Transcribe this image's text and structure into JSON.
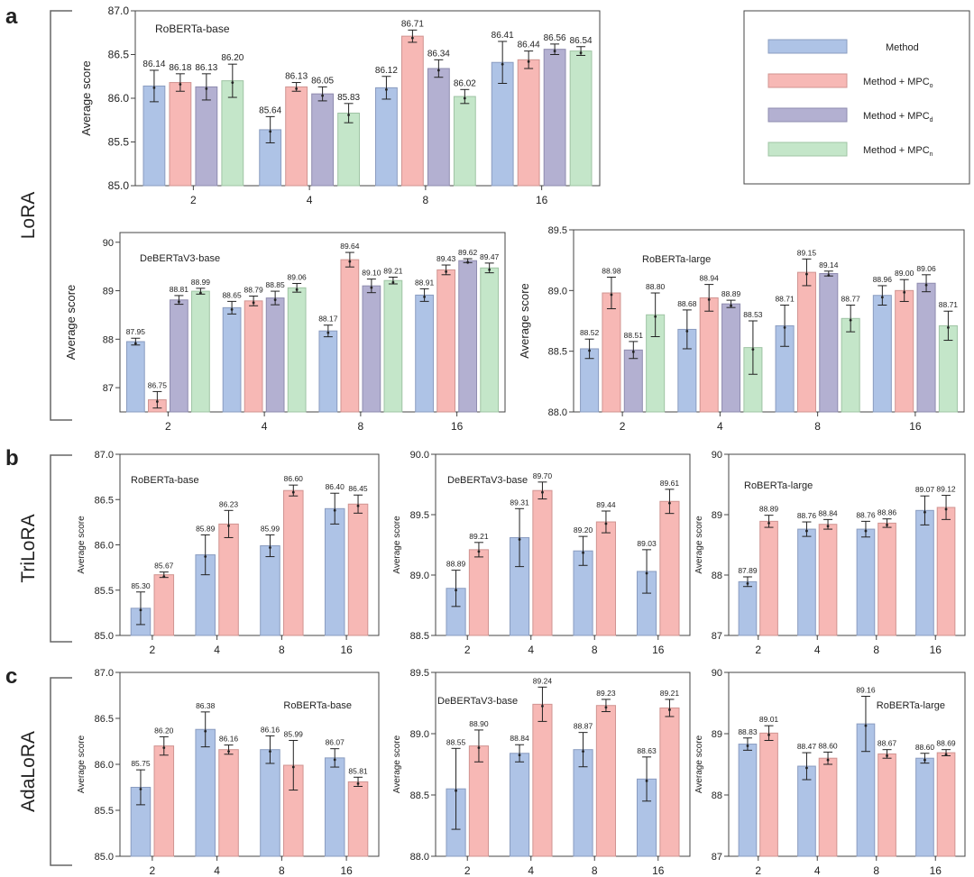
{
  "panels": [
    {
      "letter": "a",
      "method": "LoRA"
    },
    {
      "letter": "b",
      "method": "TriLoRA"
    },
    {
      "letter": "c",
      "method": "AdaLoRA"
    }
  ],
  "legend": {
    "placement": "top-right",
    "entries": [
      {
        "label": "Method",
        "base": "Method",
        "sub": "",
        "color": "#aec3e6"
      },
      {
        "label": "Method + MPC_o",
        "base": "Method + MPC",
        "sub": "o",
        "color": "#f7b8b5"
      },
      {
        "label": "Method + MPC_d",
        "base": "Method + MPC",
        "sub": "d",
        "color": "#b3b0d1"
      },
      {
        "label": "Method + MPC_n",
        "base": "Method + MPC",
        "sub": "n",
        "color": "#c4e6c9"
      }
    ]
  },
  "chart_data": [
    {
      "type": "bar",
      "panel": "a",
      "title": "RoBERTa-base",
      "ylabel": "Average score",
      "ylim": [
        85,
        87
      ],
      "yticks": [
        "85.0",
        "85.5",
        "86.0",
        "86.5",
        "87.0"
      ],
      "categories": [
        "2",
        "4",
        "8",
        "16"
      ],
      "series": [
        {
          "name": "Method",
          "values": [
            86.14,
            85.64,
            86.12,
            86.41
          ],
          "labels": [
            "86.14",
            "85.64",
            "86.12",
            "86.41"
          ],
          "err": [
            0.18,
            0.15,
            0.13,
            0.24
          ]
        },
        {
          "name": "Method + MPC_o",
          "values": [
            86.18,
            86.13,
            86.71,
            86.44
          ],
          "labels": [
            "86.18",
            "86.13",
            "86.71",
            "86.44"
          ],
          "err": [
            0.1,
            0.05,
            0.07,
            0.1
          ]
        },
        {
          "name": "Method + MPC_d",
          "values": [
            86.13,
            86.05,
            86.34,
            86.56
          ],
          "labels": [
            "86.13",
            "86.05",
            "86.34",
            "86.56"
          ],
          "err": [
            0.15,
            0.08,
            0.1,
            0.06
          ]
        },
        {
          "name": "Method + MPC_n",
          "values": [
            86.2,
            85.83,
            86.02,
            86.54
          ],
          "labels": [
            "86.20",
            "85.83",
            "86.02",
            "86.54"
          ],
          "err": [
            0.19,
            0.11,
            0.08,
            0.05
          ]
        }
      ]
    },
    {
      "type": "bar",
      "panel": "a",
      "title": "DeBERTaV3-base",
      "ylabel": "Average score",
      "ylim": [
        86.5,
        90.2
      ],
      "yticks": [
        "87",
        "88",
        "89",
        "90"
      ],
      "categories": [
        "2",
        "4",
        "8",
        "16"
      ],
      "series": [
        {
          "name": "Method",
          "values": [
            87.95,
            88.65,
            88.17,
            88.91
          ],
          "labels": [
            "87.95",
            "88.65",
            "88.17",
            "88.91"
          ],
          "err": [
            0.07,
            0.13,
            0.12,
            0.13
          ]
        },
        {
          "name": "Method + MPC_o",
          "values": [
            86.75,
            88.79,
            89.64,
            89.43
          ],
          "labels": [
            "86.75",
            "88.79",
            "89.64",
            "89.43"
          ],
          "err": [
            0.17,
            0.1,
            0.15,
            0.1
          ]
        },
        {
          "name": "Method + MPC_d",
          "values": [
            88.81,
            88.85,
            89.1,
            89.62
          ],
          "labels": [
            "88.81",
            "88.85",
            "89.10",
            "89.62"
          ],
          "err": [
            0.09,
            0.14,
            0.14,
            0.04
          ]
        },
        {
          "name": "Method + MPC_n",
          "values": [
            88.99,
            89.06,
            89.21,
            89.47
          ],
          "labels": [
            "88.99",
            "89.06",
            "89.21",
            "89.47"
          ],
          "err": [
            0.06,
            0.09,
            0.07,
            0.1
          ]
        }
      ]
    },
    {
      "type": "bar",
      "panel": "a",
      "title": "RoBERTa-large",
      "ylabel": "Average score",
      "ylim": [
        88,
        89.5
      ],
      "yticks": [
        "88.0",
        "88.5",
        "89.0",
        "89.5"
      ],
      "categories": [
        "2",
        "4",
        "8",
        "16"
      ],
      "series": [
        {
          "name": "Method",
          "values": [
            88.52,
            88.68,
            88.71,
            88.96
          ],
          "labels": [
            "88.52",
            "88.68",
            "88.71",
            "88.96"
          ],
          "err": [
            0.08,
            0.16,
            0.17,
            0.08
          ]
        },
        {
          "name": "Method + MPC_o",
          "values": [
            88.98,
            88.94,
            89.15,
            89.0
          ],
          "labels": [
            "88.98",
            "88.94",
            "89.15",
            "89.00"
          ],
          "err": [
            0.13,
            0.11,
            0.11,
            0.09
          ]
        },
        {
          "name": "Method + MPC_d",
          "values": [
            88.51,
            88.89,
            89.14,
            89.06
          ],
          "labels": [
            "88.51",
            "88.89",
            "89.14",
            "89.06"
          ],
          "err": [
            0.07,
            0.03,
            0.02,
            0.07
          ]
        },
        {
          "name": "Method + MPC_n",
          "values": [
            88.8,
            88.53,
            88.77,
            88.71
          ],
          "labels": [
            "88.80",
            "88.53",
            "88.77",
            "88.71"
          ],
          "err": [
            0.18,
            0.22,
            0.11,
            0.12
          ]
        }
      ]
    },
    {
      "type": "bar",
      "panel": "b",
      "title": "RoBERTa-base",
      "ylabel": "Average score",
      "ylim": [
        85,
        87
      ],
      "yticks": [
        "85.0",
        "85.5",
        "86.0",
        "86.5",
        "87.0"
      ],
      "categories": [
        "2",
        "4",
        "8",
        "16"
      ],
      "series": [
        {
          "name": "Method",
          "values": [
            85.3,
            85.89,
            85.99,
            86.4
          ],
          "labels": [
            "85.30",
            "85.89",
            "85.99",
            "86.40"
          ],
          "err": [
            0.18,
            0.22,
            0.12,
            0.17
          ]
        },
        {
          "name": "Method + MPC_o",
          "values": [
            85.67,
            86.23,
            86.6,
            86.45
          ],
          "labels": [
            "85.67",
            "86.23",
            "86.60",
            "86.45"
          ],
          "err": [
            0.03,
            0.15,
            0.06,
            0.1
          ]
        }
      ]
    },
    {
      "type": "bar",
      "panel": "b",
      "title": "DeBERTaV3-base",
      "ylabel": "Average score",
      "ylim": [
        88.5,
        90
      ],
      "yticks": [
        "88.5",
        "89.0",
        "89.5",
        "90.0"
      ],
      "categories": [
        "2",
        "4",
        "8",
        "16"
      ],
      "series": [
        {
          "name": "Method",
          "values": [
            88.89,
            89.31,
            89.2,
            89.03
          ],
          "labels": [
            "88.89",
            "89.31",
            "89.20",
            "89.03"
          ],
          "err": [
            0.15,
            0.24,
            0.12,
            0.18
          ]
        },
        {
          "name": "Method + MPC_o",
          "values": [
            89.21,
            89.7,
            89.44,
            89.61
          ],
          "labels": [
            "89.21",
            "89.70",
            "89.44",
            "89.61"
          ],
          "err": [
            0.06,
            0.07,
            0.09,
            0.1
          ]
        }
      ]
    },
    {
      "type": "bar",
      "panel": "b",
      "title": "RoBERTa-large",
      "ylabel": "Average score",
      "ylim": [
        87,
        90
      ],
      "yticks": [
        "87",
        "88",
        "89",
        "90"
      ],
      "categories": [
        "2",
        "4",
        "8",
        "16"
      ],
      "series": [
        {
          "name": "Method",
          "values": [
            87.89,
            88.76,
            88.76,
            89.07
          ],
          "labels": [
            "87.89",
            "88.76",
            "88.76",
            "89.07"
          ],
          "err": [
            0.08,
            0.12,
            0.13,
            0.24
          ]
        },
        {
          "name": "Method + MPC_o",
          "values": [
            88.89,
            88.84,
            88.86,
            89.12
          ],
          "labels": [
            "88.89",
            "88.84",
            "88.86",
            "89.12"
          ],
          "err": [
            0.1,
            0.08,
            0.07,
            0.2
          ]
        }
      ]
    },
    {
      "type": "bar",
      "panel": "c",
      "title": "RoBERTa-base",
      "ylabel": "Average score",
      "ylim": [
        85,
        87
      ],
      "yticks": [
        "85.0",
        "85.5",
        "86.0",
        "86.5",
        "87.0"
      ],
      "categories": [
        "2",
        "4",
        "8",
        "16"
      ],
      "series": [
        {
          "name": "Method",
          "values": [
            85.75,
            86.38,
            86.16,
            86.07
          ],
          "labels": [
            "85.75",
            "86.38",
            "86.16",
            "86.07"
          ],
          "err": [
            0.19,
            0.19,
            0.15,
            0.1
          ]
        },
        {
          "name": "Method + MPC_o",
          "values": [
            86.2,
            86.16,
            85.99,
            85.81
          ],
          "labels": [
            "86.20",
            "86.16",
            "85.99",
            "85.81"
          ],
          "err": [
            0.1,
            0.05,
            0.27,
            0.05
          ]
        }
      ]
    },
    {
      "type": "bar",
      "panel": "c",
      "title": "DeBERTaV3-base",
      "ylabel": "Average score",
      "ylim": [
        88,
        89.5
      ],
      "yticks": [
        "88.0",
        "88.5",
        "89.0",
        "89.5"
      ],
      "categories": [
        "2",
        "4",
        "8",
        "16"
      ],
      "series": [
        {
          "name": "Method",
          "values": [
            88.55,
            88.84,
            88.87,
            88.63
          ],
          "labels": [
            "88.55",
            "88.84",
            "88.87",
            "88.63"
          ],
          "err": [
            0.33,
            0.07,
            0.14,
            0.18
          ]
        },
        {
          "name": "Method + MPC_o",
          "values": [
            88.9,
            89.24,
            89.23,
            89.21
          ],
          "labels": [
            "88.90",
            "89.24",
            "89.23",
            "89.21"
          ],
          "err": [
            0.13,
            0.14,
            0.05,
            0.07
          ]
        }
      ]
    },
    {
      "type": "bar",
      "panel": "c",
      "title": "RoBERTa-large",
      "ylabel": "Average score",
      "ylim": [
        87,
        90
      ],
      "yticks": [
        "87",
        "88",
        "89",
        "90"
      ],
      "categories": [
        "2",
        "4",
        "8",
        "16"
      ],
      "series": [
        {
          "name": "Method",
          "values": [
            88.83,
            88.47,
            89.16,
            88.6
          ],
          "labels": [
            "88.83",
            "88.47",
            "89.16",
            "88.60"
          ],
          "err": [
            0.1,
            0.22,
            0.45,
            0.08
          ]
        },
        {
          "name": "Method + MPC_o",
          "values": [
            89.01,
            88.6,
            88.67,
            88.69
          ],
          "labels": [
            "89.01",
            "88.60",
            "88.67",
            "88.69"
          ],
          "err": [
            0.12,
            0.1,
            0.07,
            0.05
          ]
        }
      ]
    }
  ]
}
